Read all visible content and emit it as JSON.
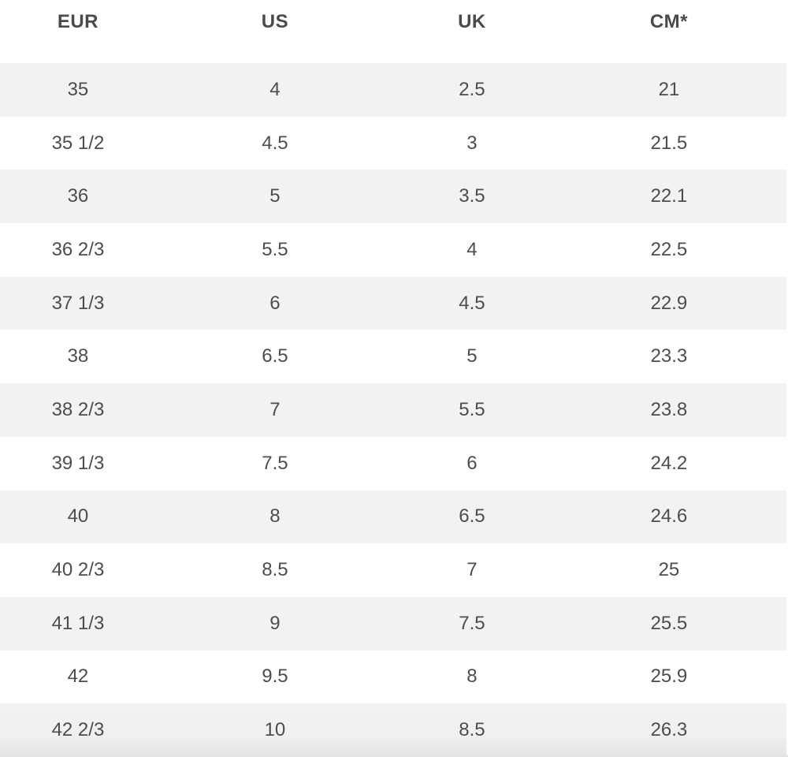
{
  "table": {
    "headers": [
      "EUR",
      "US",
      "UK",
      "CM*"
    ],
    "rows": [
      [
        "35",
        "4",
        "2.5",
        "21"
      ],
      [
        "35 1/2",
        "4.5",
        "3",
        "21.5"
      ],
      [
        "36",
        "5",
        "3.5",
        "22.1"
      ],
      [
        "36 2/3",
        "5.5",
        "4",
        "22.5"
      ],
      [
        "37 1/3",
        "6",
        "4.5",
        "22.9"
      ],
      [
        "38",
        "6.5",
        "5",
        "23.3"
      ],
      [
        "38 2/3",
        "7",
        "5.5",
        "23.8"
      ],
      [
        "39 1/3",
        "7.5",
        "6",
        "24.2"
      ],
      [
        "40",
        "8",
        "6.5",
        "24.6"
      ],
      [
        "40 2/3",
        "8.5",
        "7",
        "25"
      ],
      [
        "41 1/3",
        "9",
        "7.5",
        "25.5"
      ],
      [
        "42",
        "9.5",
        "8",
        "25.9"
      ],
      [
        "42 2/3",
        "10",
        "8.5",
        "26.3"
      ]
    ]
  },
  "colors": {
    "text": "#4a4a4a",
    "row_alt_background": "#f2f2f2",
    "background": "#ffffff"
  }
}
